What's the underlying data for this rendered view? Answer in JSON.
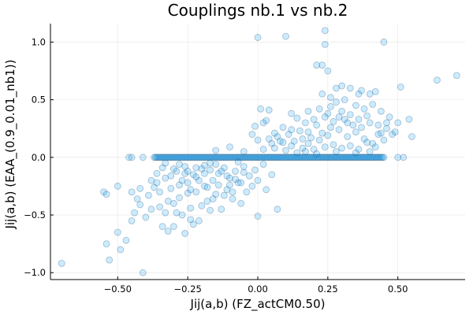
{
  "chart_data": {
    "type": "scatter",
    "title": "Couplings nb.1 vs nb.2",
    "xlabel": "Jij(a,b) (FZ_actCM0.50)",
    "ylabel": "Jij(a,b) (EAA_(0.9_0.01_nb1))",
    "xlim": [
      -0.74,
      0.74
    ],
    "ylim": [
      -1.06,
      1.16
    ],
    "xticks": [
      -0.5,
      -0.25,
      0.0,
      0.25,
      0.5
    ],
    "xtick_labels": [
      "−0.50",
      "−0.25",
      "0.00",
      "0.25",
      "0.50"
    ],
    "yticks": [
      -1.0,
      -0.5,
      0.0,
      0.5,
      1.0
    ],
    "ytick_labels": [
      "−1.0",
      "−0.5",
      "0.0",
      "0.5",
      "1.0"
    ],
    "grid": true,
    "legend": "none",
    "marker_color": "#009af9",
    "marker_edge": "#1a4d73",
    "zero_band": {
      "y": 0.0,
      "x_from": -0.37,
      "x_to": 0.45,
      "count": 180
    },
    "points": [
      [
        -0.7,
        -0.92
      ],
      [
        -0.55,
        -0.3
      ],
      [
        -0.54,
        -0.32
      ],
      [
        -0.5,
        -0.25
      ],
      [
        -0.54,
        -0.75
      ],
      [
        -0.53,
        -0.89
      ],
      [
        -0.5,
        -0.65
      ],
      [
        -0.49,
        -0.8
      ],
      [
        -0.47,
        -0.72
      ],
      [
        -0.45,
        -0.55
      ],
      [
        -0.44,
        -0.48
      ],
      [
        -0.43,
        -0.36
      ],
      [
        -0.42,
        -0.41
      ],
      [
        -0.41,
        -1.0
      ],
      [
        -0.4,
        -0.52
      ],
      [
        -0.39,
        -0.33
      ],
      [
        -0.38,
        -0.45
      ],
      [
        -0.37,
        -0.26
      ],
      [
        -0.36,
        -0.22
      ],
      [
        -0.35,
        -0.3
      ],
      [
        -0.34,
        -0.6
      ],
      [
        -0.33,
        -0.18
      ],
      [
        -0.32,
        -0.64
      ],
      [
        -0.31,
        -0.27
      ],
      [
        -0.3,
        -0.4
      ],
      [
        -0.29,
        -0.12
      ],
      [
        -0.28,
        -0.35
      ],
      [
        -0.27,
        -0.5
      ],
      [
        -0.26,
        -0.08
      ],
      [
        -0.25,
        -0.22
      ],
      [
        -0.24,
        -0.44
      ],
      [
        -0.23,
        -0.15
      ],
      [
        -0.22,
        -0.3
      ],
      [
        -0.21,
        -0.55
      ],
      [
        -0.2,
        -0.1
      ],
      [
        -0.19,
        -0.25
      ],
      [
        -0.18,
        -0.38
      ],
      [
        -0.17,
        -0.05
      ],
      [
        -0.16,
        -0.2
      ],
      [
        -0.15,
        -0.32
      ],
      [
        -0.14,
        -0.14
      ],
      [
        -0.13,
        -0.45
      ],
      [
        -0.12,
        -0.09
      ],
      [
        -0.11,
        -0.28
      ],
      [
        -0.1,
        -0.18
      ],
      [
        -0.09,
        -0.36
      ],
      [
        -0.08,
        -0.12
      ],
      [
        -0.07,
        -0.22
      ],
      [
        -0.06,
        -0.4
      ],
      [
        -0.05,
        -0.08
      ],
      [
        -0.04,
        -0.3
      ],
      [
        -0.03,
        -0.16
      ],
      [
        -0.02,
        -0.25
      ],
      [
        -0.01,
        -0.11
      ],
      [
        0.0,
        -0.51
      ],
      [
        0.0,
        -0.2
      ],
      [
        0.02,
        -0.06
      ],
      [
        0.03,
        -0.28
      ],
      [
        0.05,
        -0.15
      ],
      [
        0.07,
        -0.45
      ],
      [
        -0.33,
        -0.05
      ],
      [
        -0.3,
        -0.1
      ],
      [
        -0.27,
        -0.2
      ],
      [
        -0.25,
        -0.31
      ],
      [
        -0.22,
        -0.17
      ],
      [
        -0.2,
        -0.42
      ],
      [
        -0.18,
        -0.26
      ],
      [
        -0.15,
        -0.06
      ],
      [
        -0.12,
        -0.33
      ],
      [
        -0.1,
        -0.24
      ],
      [
        -0.08,
        -0.19
      ],
      [
        -0.05,
        -0.13
      ],
      [
        -0.28,
        -0.24
      ],
      [
        -0.26,
        -0.14
      ],
      [
        -0.24,
        -0.28
      ],
      [
        -0.21,
        -0.2
      ],
      [
        -0.19,
        -0.07
      ],
      [
        -0.16,
        -0.36
      ],
      [
        -0.14,
        -0.24
      ],
      [
        -0.11,
        -0.16
      ],
      [
        -0.09,
        -0.3
      ],
      [
        -0.06,
        -0.22
      ],
      [
        -0.32,
        -0.38
      ],
      [
        -0.29,
        -0.48
      ],
      [
        -0.23,
        -0.58
      ],
      [
        -0.17,
        -0.46
      ],
      [
        -0.13,
        -0.12
      ],
      [
        -0.07,
        -0.04
      ],
      [
        -0.36,
        -0.14
      ],
      [
        -0.34,
        -0.09
      ],
      [
        -0.31,
        -0.16
      ],
      [
        -0.28,
        -0.06
      ],
      [
        -0.25,
        -0.12
      ],
      [
        -0.22,
        -0.09
      ],
      [
        -0.19,
        -0.14
      ],
      [
        -0.17,
        -0.11
      ],
      [
        -0.45,
        -0.3
      ],
      [
        -0.42,
        -0.27
      ],
      [
        -0.38,
        -0.2
      ],
      [
        -0.35,
        -0.43
      ],
      [
        -0.33,
        -0.48
      ],
      [
        -0.3,
        -0.6
      ],
      [
        -0.26,
        -0.66
      ],
      [
        -0.24,
        -0.54
      ],
      [
        0.0,
        1.04
      ],
      [
        0.1,
        1.05
      ],
      [
        0.24,
        1.1
      ],
      [
        0.45,
        1.0
      ],
      [
        0.24,
        0.98
      ],
      [
        0.21,
        0.8
      ],
      [
        0.23,
        0.8
      ],
      [
        0.25,
        0.75
      ],
      [
        0.64,
        0.67
      ],
      [
        0.71,
        0.71
      ],
      [
        0.51,
        0.61
      ],
      [
        0.3,
        0.62
      ],
      [
        0.33,
        0.6
      ],
      [
        0.37,
        0.58
      ],
      [
        0.4,
        0.55
      ],
      [
        0.42,
        0.57
      ],
      [
        0.23,
        0.55
      ],
      [
        0.26,
        0.52
      ],
      [
        0.28,
        0.48
      ],
      [
        0.31,
        0.5
      ],
      [
        0.35,
        0.45
      ],
      [
        0.38,
        0.42
      ],
      [
        0.41,
        0.46
      ],
      [
        0.44,
        0.4
      ],
      [
        0.22,
        0.42
      ],
      [
        0.25,
        0.38
      ],
      [
        0.29,
        0.35
      ],
      [
        0.32,
        0.3
      ],
      [
        0.36,
        0.33
      ],
      [
        0.39,
        0.36
      ],
      [
        0.43,
        0.28
      ],
      [
        0.46,
        0.25
      ],
      [
        0.48,
        0.2
      ],
      [
        0.54,
        0.33
      ],
      [
        0.55,
        0.18
      ],
      [
        0.5,
        0.3
      ],
      [
        0.47,
        0.35
      ],
      [
        0.45,
        0.15
      ],
      [
        0.41,
        0.12
      ],
      [
        0.38,
        0.16
      ],
      [
        0.35,
        0.22
      ],
      [
        0.32,
        0.18
      ],
      [
        0.29,
        0.24
      ],
      [
        0.26,
        0.26
      ],
      [
        0.23,
        0.21
      ],
      [
        0.21,
        0.28
      ],
      [
        0.19,
        0.17
      ],
      [
        0.17,
        0.3
      ],
      [
        0.15,
        0.23
      ],
      [
        0.13,
        0.14
      ],
      [
        0.11,
        0.2
      ],
      [
        0.09,
        0.26
      ],
      [
        0.07,
        0.18
      ],
      [
        0.05,
        0.12
      ],
      [
        0.03,
        0.32
      ],
      [
        0.02,
        0.3
      ],
      [
        0.04,
        0.41
      ],
      [
        0.01,
        0.42
      ],
      [
        -0.01,
        0.27
      ],
      [
        0.06,
        0.08
      ],
      [
        0.08,
        0.14
      ],
      [
        0.1,
        0.06
      ],
      [
        0.12,
        0.1
      ],
      [
        0.14,
        0.34
      ],
      [
        0.16,
        0.08
      ],
      [
        0.18,
        0.12
      ],
      [
        0.2,
        0.07
      ],
      [
        0.22,
        0.15
      ],
      [
        0.24,
        0.09
      ],
      [
        0.27,
        0.11
      ],
      [
        0.3,
        0.08
      ],
      [
        0.33,
        0.1
      ],
      [
        0.36,
        0.07
      ],
      [
        0.39,
        0.13
      ],
      [
        0.42,
        0.09
      ],
      [
        0.44,
        0.21
      ],
      [
        0.34,
        0.28
      ],
      [
        0.31,
        0.33
      ],
      [
        0.27,
        0.31
      ],
      [
        0.25,
        0.19
      ],
      [
        0.2,
        0.33
      ],
      [
        0.18,
        0.22
      ],
      [
        0.16,
        0.16
      ],
      [
        0.12,
        0.24
      ],
      [
        0.09,
        0.13
      ],
      [
        0.06,
        0.21
      ],
      [
        0.04,
        0.16
      ],
      [
        0.02,
        0.07
      ],
      [
        0.26,
        0.44
      ],
      [
        0.3,
        0.4
      ],
      [
        0.33,
        0.37
      ],
      [
        0.37,
        0.26
      ],
      [
        0.4,
        0.3
      ],
      [
        0.43,
        0.2
      ],
      [
        0.46,
        0.3
      ],
      [
        0.49,
        0.22
      ],
      [
        -0.02,
        0.2
      ],
      [
        0.0,
        0.15
      ],
      [
        0.14,
        0.04
      ],
      [
        0.17,
        0.05
      ],
      [
        0.21,
        0.03
      ],
      [
        0.28,
        0.05
      ],
      [
        0.35,
        0.04
      ],
      [
        0.4,
        0.05
      ],
      [
        -0.15,
        0.06
      ],
      [
        -0.1,
        0.09
      ],
      [
        -0.05,
        0.05
      ],
      [
        0.12,
        0.38
      ],
      [
        0.18,
        0.4
      ],
      [
        0.24,
        0.35
      ],
      [
        0.28,
        0.6
      ],
      [
        0.36,
        0.55
      ],
      [
        -0.46,
        0.0
      ],
      [
        -0.45,
        0.0
      ],
      [
        -0.41,
        0.0
      ],
      [
        0.5,
        0.0
      ],
      [
        0.52,
        0.0
      ]
    ]
  }
}
